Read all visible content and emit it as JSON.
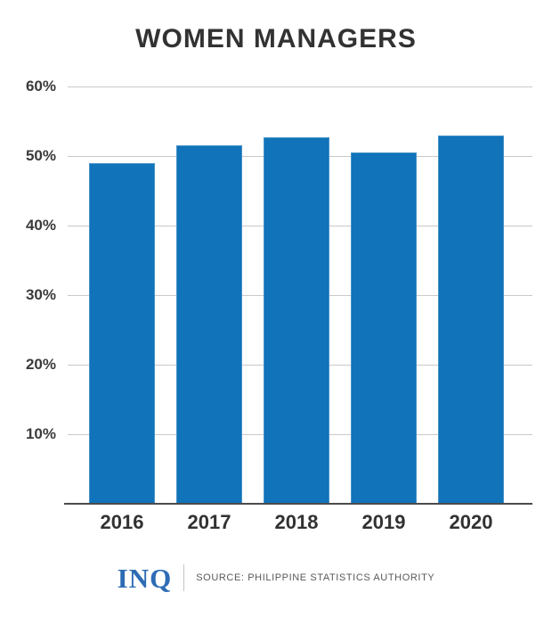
{
  "title": "WOMEN MANAGERS",
  "chart_data": {
    "type": "bar",
    "title": "WOMEN MANAGERS",
    "categories": [
      "2016",
      "2017",
      "2018",
      "2019",
      "2020"
    ],
    "values": [
      49.0,
      51.5,
      52.7,
      50.5,
      53.0
    ],
    "value_unit": "%",
    "xlabel": "",
    "ylabel": "",
    "ylim": [
      0,
      60
    ],
    "yticks": [
      60,
      50,
      40,
      30,
      20,
      10
    ],
    "ytick_suffix": "%",
    "grid": true,
    "legend_position": "none",
    "bar_color": "#1173b9"
  },
  "footer": {
    "logo_text": "INQ",
    "source_text": "SOURCE: PHILIPPINE STATISTICS AUTHORITY"
  },
  "colors": {
    "bar": "#1173b9",
    "title_text": "#323232",
    "tick_label": "#3a3a3a",
    "gridline": "#c9c9c9",
    "baseline": "#4c4c4c",
    "logo_blue": "#2d6cb4",
    "source_gray": "#58595b",
    "background": "#ffffff"
  }
}
